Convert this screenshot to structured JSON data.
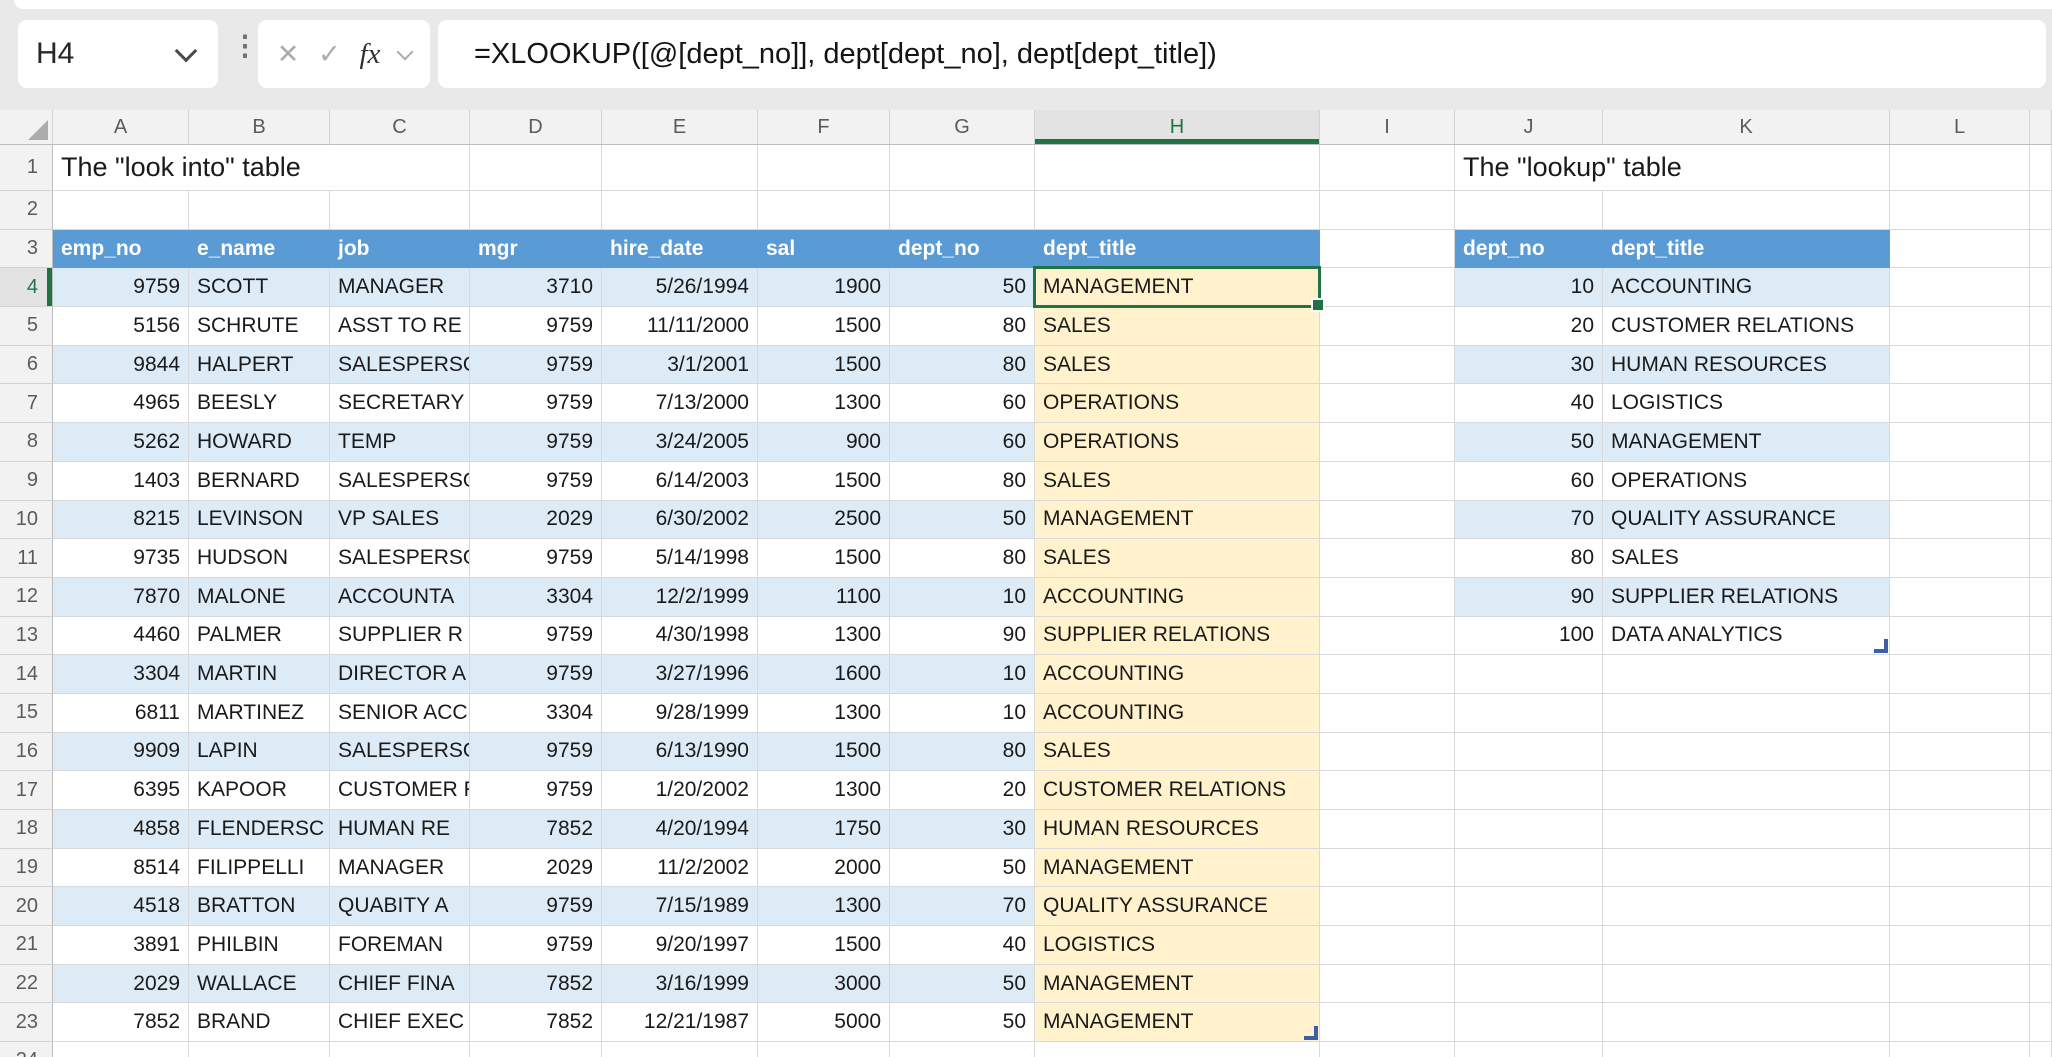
{
  "app": {
    "name_box": "H4",
    "formula": "=XLOOKUP([@[dept_no]], dept[dept_no], dept[dept_title])",
    "fx_label": "fx"
  },
  "grid": {
    "column_letters": [
      "A",
      "B",
      "C",
      "D",
      "E",
      "F",
      "G",
      "H",
      "I",
      "J",
      "K",
      "L"
    ],
    "row_count": 24,
    "selected_cell": "H4",
    "selected_column": "H",
    "selected_row": 4
  },
  "titles": {
    "look_into": "The \"look into\" table",
    "lookup": "The \"lookup\" table"
  },
  "main_table": {
    "columns": [
      "emp_no",
      "e_name",
      "job",
      "mgr",
      "hire_date",
      "sal",
      "dept_no",
      "dept_title"
    ],
    "rows": [
      [
        9759,
        "SCOTT",
        "MANAGER",
        3710,
        "5/26/1994",
        1900,
        50,
        "MANAGEMENT"
      ],
      [
        5156,
        "SCHRUTE",
        "ASST TO RE",
        9759,
        "11/11/2000",
        1500,
        80,
        "SALES"
      ],
      [
        9844,
        "HALPERT",
        "SALESPERSO",
        9759,
        "3/1/2001",
        1500,
        80,
        "SALES"
      ],
      [
        4965,
        "BEESLY",
        "SECRETARY",
        9759,
        "7/13/2000",
        1300,
        60,
        "OPERATIONS"
      ],
      [
        5262,
        "HOWARD",
        "TEMP",
        9759,
        "3/24/2005",
        900,
        60,
        "OPERATIONS"
      ],
      [
        1403,
        "BERNARD",
        "SALESPERSO",
        9759,
        "6/14/2003",
        1500,
        80,
        "SALES"
      ],
      [
        8215,
        "LEVINSON",
        "VP SALES",
        2029,
        "6/30/2002",
        2500,
        50,
        "MANAGEMENT"
      ],
      [
        9735,
        "HUDSON",
        "SALESPERSO",
        9759,
        "5/14/1998",
        1500,
        80,
        "SALES"
      ],
      [
        7870,
        "MALONE",
        "ACCOUNTA",
        3304,
        "12/2/1999",
        1100,
        10,
        "ACCOUNTING"
      ],
      [
        4460,
        "PALMER",
        "SUPPLIER R",
        9759,
        "4/30/1998",
        1300,
        90,
        "SUPPLIER RELATIONS"
      ],
      [
        3304,
        "MARTIN",
        "DIRECTOR A",
        9759,
        "3/27/1996",
        1600,
        10,
        "ACCOUNTING"
      ],
      [
        6811,
        "MARTINEZ",
        "SENIOR ACC",
        3304,
        "9/28/1999",
        1300,
        10,
        "ACCOUNTING"
      ],
      [
        9909,
        "LAPIN",
        "SALESPERSO",
        9759,
        "6/13/1990",
        1500,
        80,
        "SALES"
      ],
      [
        6395,
        "KAPOOR",
        "CUSTOMER R",
        9759,
        "1/20/2002",
        1300,
        20,
        "CUSTOMER RELATIONS"
      ],
      [
        4858,
        "FLENDERSC",
        "HUMAN RE",
        7852,
        "4/20/1994",
        1750,
        30,
        "HUMAN RESOURCES"
      ],
      [
        8514,
        "FILIPPELLI",
        "MANAGER",
        2029,
        "11/2/2002",
        2000,
        50,
        "MANAGEMENT"
      ],
      [
        4518,
        "BRATTON",
        "QUABITY A",
        9759,
        "7/15/1989",
        1300,
        70,
        "QUALITY ASSURANCE"
      ],
      [
        3891,
        "PHILBIN",
        "FOREMAN",
        9759,
        "9/20/1997",
        1500,
        40,
        "LOGISTICS"
      ],
      [
        2029,
        "WALLACE",
        "CHIEF FINA",
        7852,
        "3/16/1999",
        3000,
        50,
        "MANAGEMENT"
      ],
      [
        7852,
        "BRAND",
        "CHIEF EXEC",
        7852,
        "12/21/1987",
        5000,
        50,
        "MANAGEMENT"
      ]
    ]
  },
  "lookup_table": {
    "columns": [
      "dept_no",
      "dept_title"
    ],
    "rows": [
      [
        10,
        "ACCOUNTING"
      ],
      [
        20,
        "CUSTOMER RELATIONS"
      ],
      [
        30,
        "HUMAN RESOURCES"
      ],
      [
        40,
        "LOGISTICS"
      ],
      [
        50,
        "MANAGEMENT"
      ],
      [
        60,
        "OPERATIONS"
      ],
      [
        70,
        "QUALITY ASSURANCE"
      ],
      [
        80,
        "SALES"
      ],
      [
        90,
        "SUPPLIER RELATIONS"
      ],
      [
        100,
        "DATA ANALYTICS"
      ]
    ]
  },
  "colors": {
    "table_header_blue": "#5B9BD5",
    "band_blue": "#DDEBF7",
    "result_yellow": "#FFF2CC",
    "selection_green": "#217346",
    "table_corner_blue": "#3D5FA8"
  }
}
